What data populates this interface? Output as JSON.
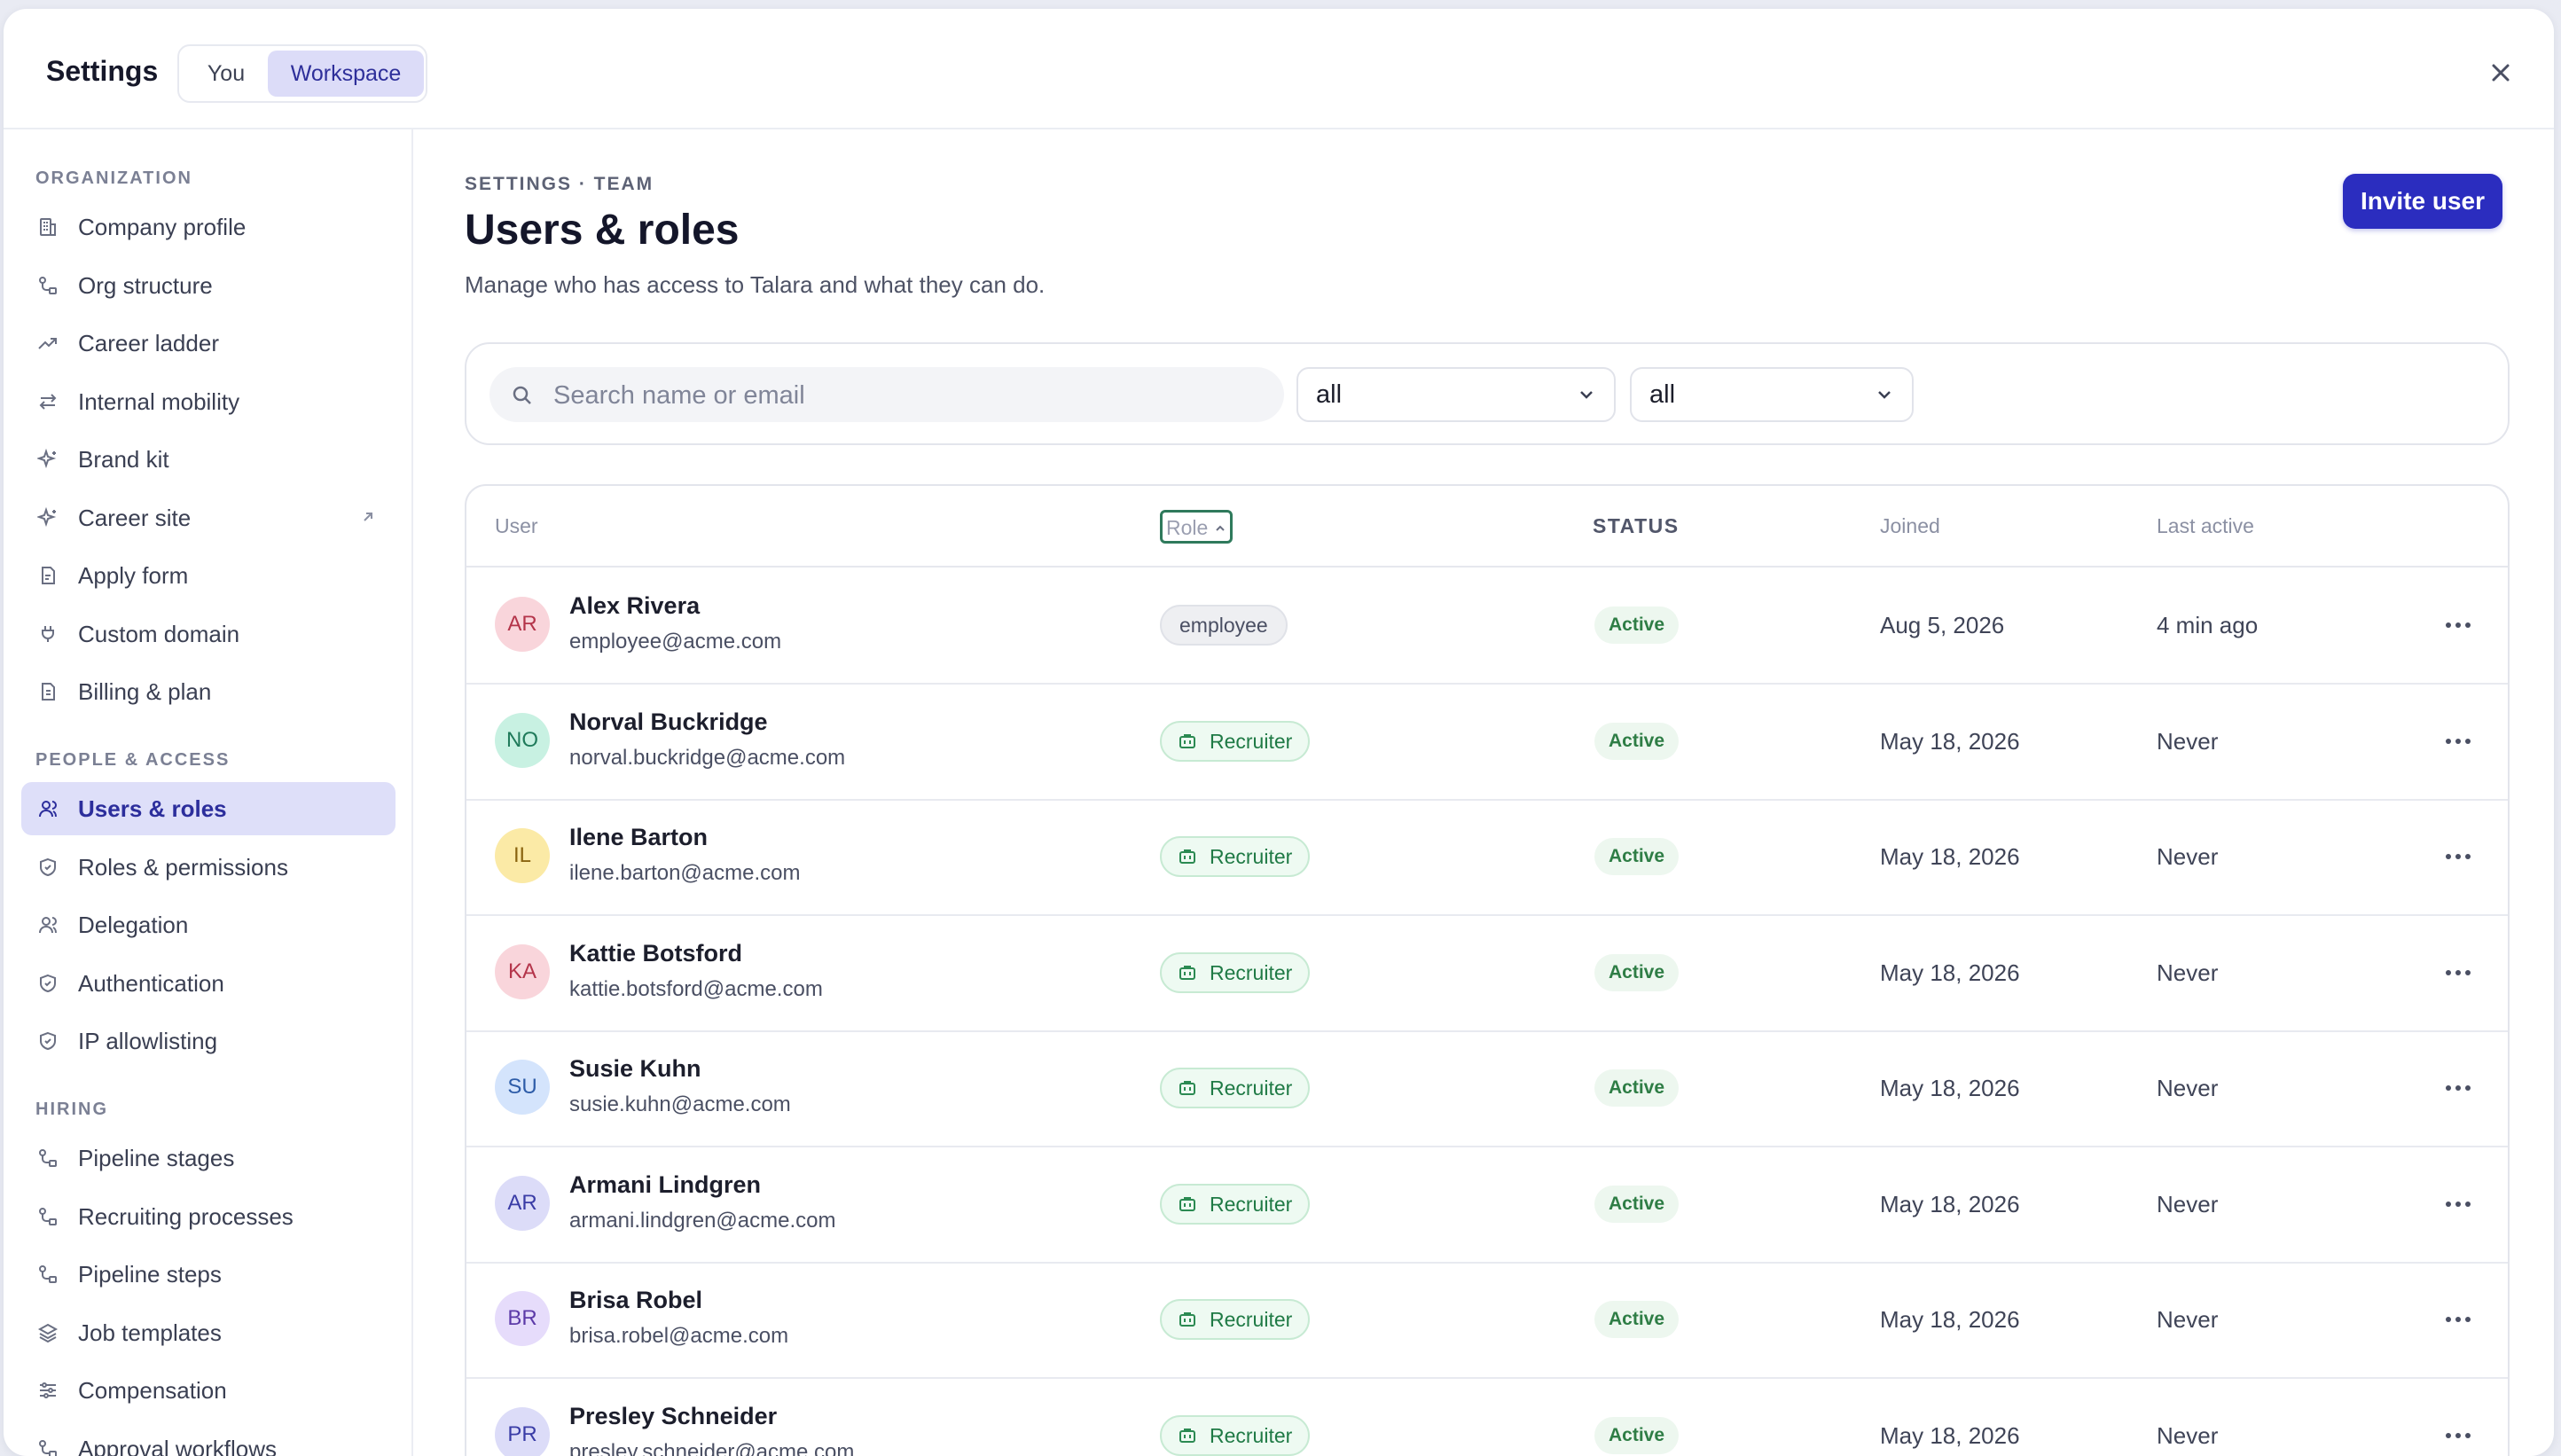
{
  "header": {
    "title": "Settings",
    "scope_tabs": [
      {
        "label": "You"
      },
      {
        "label": "Workspace",
        "active": true
      }
    ]
  },
  "sidebar": {
    "sections": [
      {
        "title": "ORGANIZATION",
        "items": [
          {
            "label": "Company profile",
            "icon": "building-icon"
          },
          {
            "label": "Org structure",
            "icon": "org-structure-icon"
          },
          {
            "label": "Career ladder",
            "icon": "trend-up-icon"
          },
          {
            "label": "Internal mobility",
            "icon": "arrows-swap-icon"
          },
          {
            "label": "Brand kit",
            "icon": "sparkles-icon"
          },
          {
            "label": "Career site",
            "icon": "sparkles-icon",
            "external": true
          },
          {
            "label": "Apply form",
            "icon": "form-icon"
          },
          {
            "label": "Custom domain",
            "icon": "plug-icon"
          },
          {
            "label": "Billing & plan",
            "icon": "receipt-icon"
          }
        ]
      },
      {
        "title": "PEOPLE & ACCESS",
        "items": [
          {
            "label": "Users & roles",
            "icon": "users-icon",
            "active": true
          },
          {
            "label": "Roles & permissions",
            "icon": "shield-icon"
          },
          {
            "label": "Delegation",
            "icon": "users-icon"
          },
          {
            "label": "Authentication",
            "icon": "shield-check-icon"
          },
          {
            "label": "IP allowlisting",
            "icon": "shield-check-icon"
          }
        ]
      },
      {
        "title": "HIRING",
        "items": [
          {
            "label": "Pipeline stages",
            "icon": "workflow-icon"
          },
          {
            "label": "Recruiting processes",
            "icon": "workflow-icon"
          },
          {
            "label": "Pipeline steps",
            "icon": "workflow-icon"
          },
          {
            "label": "Job templates",
            "icon": "layers-icon"
          },
          {
            "label": "Compensation",
            "icon": "sliders-icon"
          },
          {
            "label": "Approval workflows",
            "icon": "workflow-icon"
          }
        ]
      }
    ]
  },
  "main": {
    "breadcrumb": "SETTINGS · TEAM",
    "title": "Users & roles",
    "subtitle": "Manage who has access to Talara and what they can do.",
    "invite_label": "Invite user",
    "filters": {
      "search_placeholder": "Search name or email",
      "role_filter": "all",
      "status_filter": "all"
    },
    "table": {
      "columns": {
        "user": "User",
        "role": "Role",
        "status": "STATUS",
        "joined": "Joined",
        "last_active": "Last active"
      },
      "rows": [
        {
          "initials": "AR",
          "name": "Alex Rivera",
          "email": "employee@acme.com",
          "role": "employee",
          "status": "Active",
          "joined": "Aug 5, 2026",
          "last_active": "4 min ago",
          "avatar_bg": "#f9d5db",
          "avatar_fg": "#b4344a"
        },
        {
          "initials": "NO",
          "name": "Norval Buckridge",
          "email": "norval.buckridge@acme.com",
          "role": "Recruiter",
          "status": "Active",
          "joined": "May 18, 2026",
          "last_active": "Never",
          "avatar_bg": "#c8f1e2",
          "avatar_fg": "#1f7a5a"
        },
        {
          "initials": "IL",
          "name": "Ilene Barton",
          "email": "ilene.barton@acme.com",
          "role": "Recruiter",
          "status": "Active",
          "joined": "May 18, 2026",
          "last_active": "Never",
          "avatar_bg": "#fbeaa6",
          "avatar_fg": "#8a6410"
        },
        {
          "initials": "KA",
          "name": "Kattie Botsford",
          "email": "kattie.botsford@acme.com",
          "role": "Recruiter",
          "status": "Active",
          "joined": "May 18, 2026",
          "last_active": "Never",
          "avatar_bg": "#f9d5db",
          "avatar_fg": "#b4344a"
        },
        {
          "initials": "SU",
          "name": "Susie Kuhn",
          "email": "susie.kuhn@acme.com",
          "role": "Recruiter",
          "status": "Active",
          "joined": "May 18, 2026",
          "last_active": "Never",
          "avatar_bg": "#d4e4fc",
          "avatar_fg": "#2d5ca8"
        },
        {
          "initials": "AR",
          "name": "Armani Lindgren",
          "email": "armani.lindgren@acme.com",
          "role": "Recruiter",
          "status": "Active",
          "joined": "May 18, 2026",
          "last_active": "Never",
          "avatar_bg": "#dcdcf8",
          "avatar_fg": "#3a3ca6"
        },
        {
          "initials": "BR",
          "name": "Brisa Robel",
          "email": "brisa.robel@acme.com",
          "role": "Recruiter",
          "status": "Active",
          "joined": "May 18, 2026",
          "last_active": "Never",
          "avatar_bg": "#e6dcfb",
          "avatar_fg": "#5c3aa8"
        },
        {
          "initials": "PR",
          "name": "Presley Schneider",
          "email": "presley.schneider@acme.com",
          "role": "Recruiter",
          "status": "Active",
          "joined": "May 18, 2026",
          "last_active": "Never",
          "avatar_bg": "#dcdcf8",
          "avatar_fg": "#3a3ca6"
        }
      ]
    }
  },
  "colors": {
    "accent": "#2b2dbf",
    "active_nav_bg": "#dedff9",
    "status_active_bg": "#edf7ef",
    "status_active_fg": "#2e7d45",
    "recruiter_badge_bg": "#eefaf2"
  }
}
